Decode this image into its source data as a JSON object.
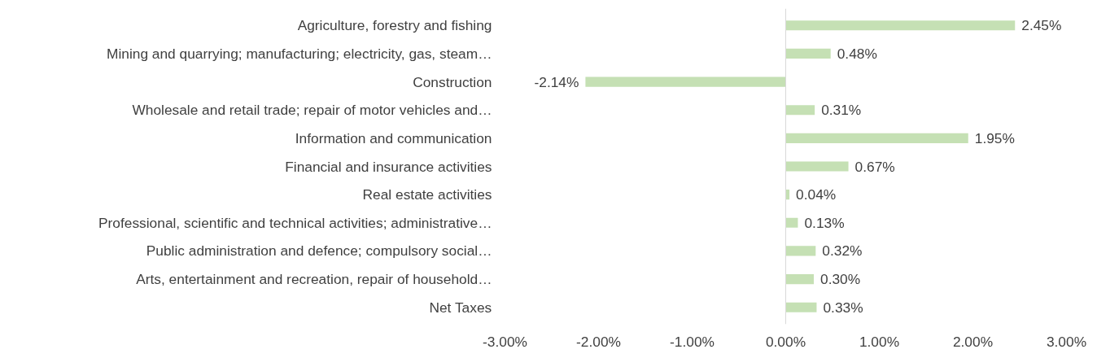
{
  "chart_data": {
    "type": "bar",
    "orientation": "horizontal",
    "categories": [
      "Agriculture, forestry and fishing",
      "Mining and quarrying; manufacturing; electricity, gas, steam…",
      "Construction",
      "Wholesale and retail trade; repair of motor vehicles and…",
      "Information and communication",
      "Financial and insurance activities",
      "Real estate activities",
      "Professional, scientific and technical activities; administrative…",
      "Public administration and defence; compulsory social…",
      "Arts, entertainment and recreation, repair of household…",
      "Net Taxes"
    ],
    "values": [
      2.45,
      0.48,
      -2.14,
      0.31,
      1.95,
      0.67,
      0.04,
      0.13,
      0.32,
      0.3,
      0.33
    ],
    "value_labels": [
      "2.45%",
      "0.48%",
      "-2.14%",
      "0.31%",
      "1.95%",
      "0.67%",
      "0.04%",
      "0.13%",
      "0.32%",
      "0.30%",
      "0.33%"
    ],
    "color": "#c5e0b4",
    "xlim": [
      -3,
      3
    ],
    "xticks": [
      {
        "value": -3,
        "label": "-3.00%"
      },
      {
        "value": -2,
        "label": "-2.00%"
      },
      {
        "value": -1,
        "label": "-1.00%"
      },
      {
        "value": 0,
        "label": "0.00%"
      },
      {
        "value": 1,
        "label": "1.00%"
      },
      {
        "value": 2,
        "label": "2.00%"
      },
      {
        "value": 3,
        "label": "3.00%"
      }
    ]
  }
}
